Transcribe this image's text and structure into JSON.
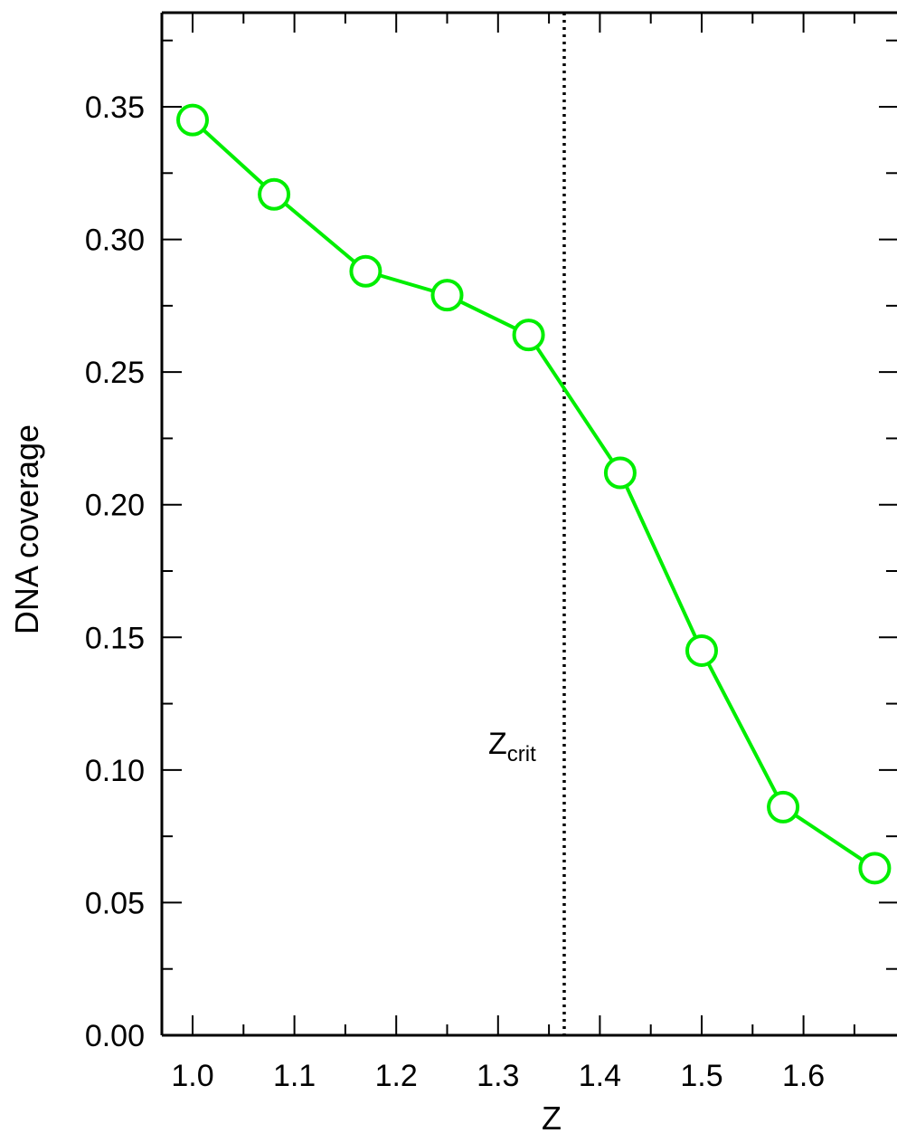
{
  "chart_data": {
    "type": "line",
    "xlabel": "Z",
    "ylabel": "DNA coverage",
    "xlim": [
      0.94,
      1.72
    ],
    "ylim": [
      0.0,
      0.38
    ],
    "x_ticks": [
      "1.0",
      "1.1",
      "1.2",
      "1.3",
      "1.4",
      "1.5",
      "1.6"
    ],
    "y_ticks": [
      "0.00",
      "0.05",
      "0.10",
      "0.15",
      "0.20",
      "0.25",
      "0.30",
      "0.35"
    ],
    "series": [
      {
        "color": "#00ee00",
        "marker": "open-circle",
        "x": [
          1.0,
          1.08,
          1.17,
          1.25,
          1.33,
          1.42,
          1.5,
          1.58,
          1.67
        ],
        "y": [
          0.345,
          0.317,
          0.288,
          0.279,
          0.264,
          0.212,
          0.145,
          0.086,
          0.063
        ]
      }
    ],
    "reference_line": {
      "x": 1.365,
      "style": "dotted",
      "label_main": "Z",
      "label_sub": "crit"
    },
    "grid": false
  }
}
